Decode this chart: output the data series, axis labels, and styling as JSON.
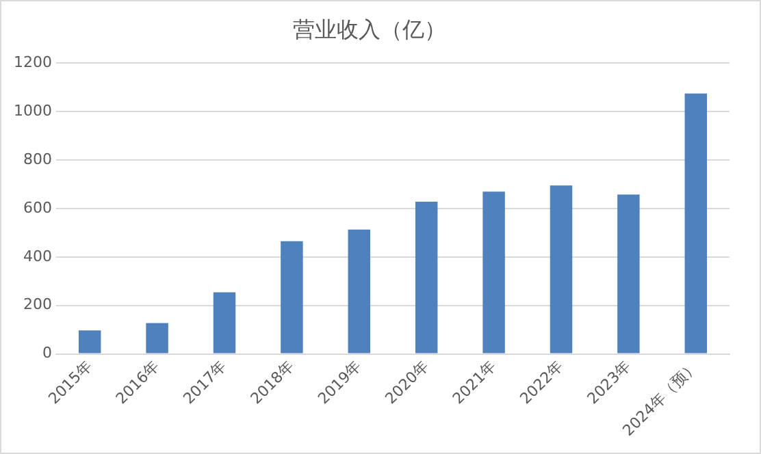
{
  "chart_data": {
    "type": "bar",
    "title": "营业收入（亿）",
    "categories": [
      "2015年",
      "2016年",
      "2017年",
      "2018年",
      "2019年",
      "2020年",
      "2021年",
      "2022年",
      "2023年",
      "2024年（预）"
    ],
    "values": [
      97,
      127,
      254,
      465,
      513,
      628,
      670,
      695,
      658,
      1075
    ],
    "color": "#4f81bd",
    "ylim": [
      0,
      1200
    ],
    "yticks": [
      0,
      200,
      400,
      600,
      800,
      1000,
      1200
    ],
    "grid": "y",
    "legend": false
  }
}
